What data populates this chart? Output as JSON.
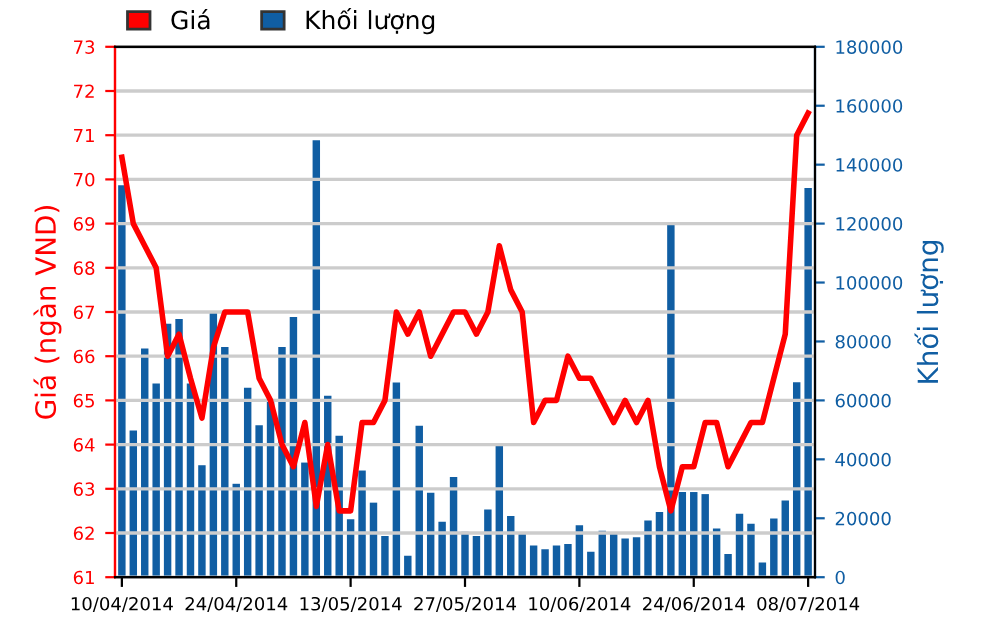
{
  "chart_data": {
    "type": "line",
    "ylabel": "Giá (ngàn VND)",
    "y2label": "Khối lượng",
    "categories": [
      "10/04/2014",
      null,
      null,
      null,
      null,
      null,
      null,
      null,
      null,
      null,
      "24/04/2014",
      null,
      null,
      null,
      null,
      null,
      null,
      null,
      null,
      null,
      "13/05/2014",
      null,
      null,
      null,
      null,
      null,
      null,
      null,
      null,
      null,
      "27/05/2014",
      null,
      null,
      null,
      null,
      null,
      null,
      null,
      null,
      null,
      "10/06/2014",
      null,
      null,
      null,
      null,
      null,
      null,
      null,
      null,
      null,
      "24/06/2014",
      null,
      null,
      null,
      null,
      null,
      null,
      null,
      null,
      null,
      "08/07/2014"
    ],
    "series": [
      {
        "name": "Khối lượng",
        "type": "bar",
        "axis": "y2",
        "color": "#105ea3",
        "values": [
          133000,
          49800,
          77600,
          65700,
          86000,
          87600,
          65700,
          38000,
          90100,
          78100,
          31700,
          64300,
          51600,
          60000,
          78100,
          88300,
          38900,
          148300,
          61600,
          48000,
          19700,
          36200,
          25300,
          14000,
          66100,
          7300,
          51400,
          28700,
          18800,
          34000,
          15400,
          14000,
          23000,
          45200,
          20800,
          15100,
          10800,
          9500,
          10800,
          11300,
          17600,
          8600,
          15800,
          15100,
          13100,
          13600,
          19200,
          22100,
          120400,
          28900,
          28900,
          28200,
          16500,
          7900,
          21500,
          18100,
          5000,
          19900,
          26000,
          66200,
          132100
        ]
      },
      {
        "name": "Giá",
        "axis": "y",
        "color": "#ff0000",
        "values": [
          70.5,
          69,
          68.5,
          68,
          66,
          66.5,
          65.5,
          64.6,
          66.2,
          67,
          67,
          67,
          65.5,
          65,
          64,
          63.5,
          64.5,
          62.6,
          64,
          62.5,
          62.5,
          64.5,
          64.5,
          65,
          67,
          66.5,
          67,
          66,
          66.5,
          67,
          67,
          66.5,
          67,
          68.5,
          67.5,
          67,
          64.5,
          65,
          65,
          66,
          65.5,
          65.5,
          65,
          64.5,
          65,
          64.5,
          65,
          63.5,
          62.5,
          63.5,
          63.5,
          64.5,
          64.5,
          63.5,
          64,
          64.5,
          64.5,
          65.5,
          66.5,
          71,
          71.5
        ]
      }
    ],
    "ylim": [
      61,
      73
    ],
    "yticks": [
      61,
      62,
      63,
      64,
      65,
      66,
      67,
      68,
      69,
      70,
      71,
      72,
      73
    ],
    "y2lim": [
      0,
      180000
    ],
    "y2ticks": [
      0,
      20000,
      40000,
      60000,
      80000,
      100000,
      120000,
      140000,
      160000,
      180000
    ],
    "grid": "y",
    "legend": "top left"
  }
}
